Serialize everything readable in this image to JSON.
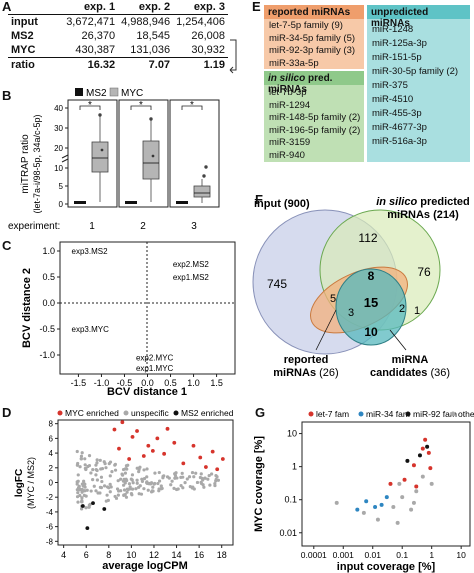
{
  "panels": {
    "A": "A",
    "B": "B",
    "C": "C",
    "D": "D",
    "E": "E",
    "F": "F",
    "G": "G"
  },
  "tableA": {
    "headers": [
      "",
      "exp. 1",
      "exp. 2",
      "exp. 3"
    ],
    "rows": [
      {
        "label": "input",
        "values": [
          "3,672,471",
          "4,988,946",
          "1,254,406"
        ]
      },
      {
        "label": "MS2",
        "values": [
          "26,370",
          "18,545",
          "26,008"
        ]
      },
      {
        "label": "MYC",
        "values": [
          "430,387",
          "131,036",
          "30,932"
        ]
      },
      {
        "label": "ratio",
        "values": [
          "16.32",
          "7.07",
          "1.19"
        ]
      }
    ]
  },
  "panelB": {
    "ylabel_line1": "miTRAP ratio",
    "ylabel_line2": "(let-7a-i/98-5p, 34a/c-5p)",
    "legend": [
      "MS2",
      "MYC"
    ],
    "star": "*",
    "yticks": [
      "0",
      "5",
      "10",
      "20",
      "30",
      "40"
    ],
    "experiment_label": "experiment:",
    "experiments": [
      "1",
      "2",
      "3"
    ],
    "colors": {
      "MS2": "#111111",
      "MYC": "#b5b5b5"
    }
  },
  "panelC": {
    "xlabel": "BCV distance 1",
    "ylabel": "BCV distance 2",
    "xticks": [
      "-1.5",
      "-1.0",
      "-0.5",
      "0.0",
      "0.5",
      "1.0",
      "1.5"
    ],
    "yticks": [
      "1.0",
      "0.5",
      "0.0",
      "-0.5",
      "-1.0"
    ],
    "points": [
      {
        "label": "exp3.MS2",
        "x": -1.65,
        "y": 1.0
      },
      {
        "label": "exp2.MS2",
        "x": 0.55,
        "y": 0.75
      },
      {
        "label": "exp1.MS2",
        "x": 0.55,
        "y": 0.5
      },
      {
        "label": "exp3.MYC",
        "x": -1.65,
        "y": -0.5
      },
      {
        "label": "exp2.MYC",
        "x": -0.25,
        "y": -1.05
      },
      {
        "label": "exp1.MYC",
        "x": -0.25,
        "y": -1.25
      }
    ]
  },
  "chart_data": [
    {
      "type": "scatter",
      "panel": "D",
      "xlabel": "average logCPM",
      "ylabel": "logFC (MYC / MS2)",
      "xticks": [
        "4",
        "6",
        "8",
        "10",
        "12",
        "14",
        "16",
        "18"
      ],
      "yticks": [
        "8",
        "6",
        "4",
        "2",
        "0",
        "-2",
        "-4",
        "-6",
        "-8"
      ],
      "xlim": [
        3.5,
        19
      ],
      "ylim": [
        -8.5,
        8.5
      ],
      "legend": [
        "MYC enriched",
        "unspecific",
        "MS2 enriched"
      ],
      "colors": {
        "MYC enriched": "#d6342c",
        "unspecific": "#a9a9a9",
        "MS2 enriched": "#111111"
      },
      "series": [
        {
          "name": "MYC enriched",
          "points": [
            [
              8.5,
              7.2
            ],
            [
              9.2,
              8.2
            ],
            [
              10.1,
              6.2
            ],
            [
              11.5,
              5.0
            ],
            [
              12.3,
              6.0
            ],
            [
              13.8,
              5.4
            ],
            [
              12.9,
              3.9
            ],
            [
              14.6,
              2.6
            ],
            [
              16.1,
              3.4
            ],
            [
              17.2,
              4.2
            ],
            [
              18.1,
              3.2
            ],
            [
              11.9,
              4.3
            ],
            [
              15.5,
              5.0
            ],
            [
              9.8,
              3.2
            ],
            [
              16.6,
              2.1
            ],
            [
              10.5,
              7.0
            ],
            [
              13.2,
              7.3
            ],
            [
              8.9,
              4.6
            ],
            [
              11.1,
              3.6
            ],
            [
              17.6,
              1.8
            ]
          ]
        },
        {
          "name": "MS2 enriched",
          "points": [
            [
              6.1,
              -6.2
            ],
            [
              7.6,
              -3.6
            ],
            [
              5.7,
              -3.2
            ],
            [
              6.6,
              -2.8
            ]
          ]
        }
      ]
    },
    {
      "type": "scatter",
      "panel": "G",
      "xlabel": "input coverage [%]",
      "ylabel": "MYC coverage [%]",
      "xscale": "log",
      "yscale": "log",
      "xticks": [
        "0.0001",
        "0.001",
        "0.01",
        "0.1",
        "1",
        "10"
      ],
      "yticks": [
        "10",
        "1",
        "0.1",
        "0.01"
      ],
      "legend": [
        "let-7 fam",
        "miR-34 fam",
        "miR-92 fam",
        "other"
      ],
      "colors": {
        "let-7 fam": "#d6342c",
        "miR-34 fam": "#2e86c1",
        "miR-92 fam": "#111111",
        "other": "#a9a9a9"
      },
      "series": [
        {
          "name": "let-7 fam",
          "points": [
            [
              0.25,
              1.1
            ],
            [
              0.5,
              3.5
            ],
            [
              0.6,
              6.5
            ],
            [
              0.8,
              2.6
            ],
            [
              0.12,
              0.4
            ],
            [
              0.04,
              0.3
            ],
            [
              0.3,
              0.25
            ],
            [
              0.9,
              0.9
            ]
          ]
        },
        {
          "name": "miR-34 fam",
          "points": [
            [
              0.003,
              0.05
            ],
            [
              0.006,
              0.09
            ],
            [
              0.02,
              0.07
            ],
            [
              0.03,
              0.12
            ],
            [
              0.012,
              0.06
            ]
          ]
        },
        {
          "name": "miR-92 fam",
          "points": [
            [
              0.4,
              2.2
            ],
            [
              0.15,
              1.5
            ],
            [
              0.7,
              4.0
            ]
          ]
        },
        {
          "name": "other",
          "points": [
            [
              0.0006,
              0.08
            ],
            [
              0.005,
              0.04
            ],
            [
              0.015,
              0.025
            ],
            [
              0.05,
              0.06
            ],
            [
              0.08,
              0.3
            ],
            [
              0.1,
              0.12
            ],
            [
              0.2,
              0.05
            ],
            [
              0.3,
              0.18
            ],
            [
              0.5,
              0.5
            ],
            [
              1.0,
              0.3
            ],
            [
              0.07,
              0.02
            ],
            [
              0.25,
              0.08
            ]
          ]
        }
      ]
    }
  ],
  "panelE": {
    "reported_title": "reported miRNAs",
    "reported": [
      "let-7-5p family (9)",
      "miR-34-5p family (5)",
      "miR-92-3p family (3)",
      "miR-33a-5p"
    ],
    "insilico_title_italic": "in silico",
    "insilico_title_rest": " pred. miRNAs",
    "insilico": [
      "let-7b-3p",
      "miR-1294",
      "miR-148-5p family (2)",
      "miR-196-5p family (2)",
      "miR-3159",
      "miR-940"
    ],
    "unpredicted_title": "unpredicted miRNAs",
    "unpredicted": [
      "miR-1248",
      "miR-125a-3p",
      "miR-151-5p",
      "miR-30-5p family (2)",
      "miR-375",
      "miR-4510",
      "miR-455-3p",
      "miR-4677-3p",
      "miR-516a-3p"
    ],
    "colors": {
      "reported_head": "#ef9e6c",
      "reported_body": "#f7c9a8",
      "insilico_head": "#8fc98a",
      "insilico_body": "#bfe0b4",
      "unpredicted_head": "#5ec3c6",
      "unpredicted_body": "#a9dfe0"
    }
  },
  "panelF": {
    "input_label": "input (900)",
    "insilico_label_italic": "in silico",
    "insilico_label_rest": "predicted",
    "insilico_label_line2": "miRNAs (214)",
    "reported_label": "reported",
    "reported_label_line2": "miRNAs (26)",
    "candidates_label": "miRNA",
    "candidates_label_line2": "candidates (36)",
    "counts": {
      "input_only": "745",
      "input_insilico": "112",
      "insilico_only": "76",
      "center_top": "8",
      "center": "15",
      "rep_input": "5",
      "rep_small": "3",
      "cand_right": "2",
      "cand_far": "1",
      "cand_bottom": "10"
    },
    "colors": {
      "input": "#c8cfe8",
      "insilico": "#d9ebb8",
      "reported": "#f3b07c",
      "candidates": "#57b8be"
    }
  }
}
